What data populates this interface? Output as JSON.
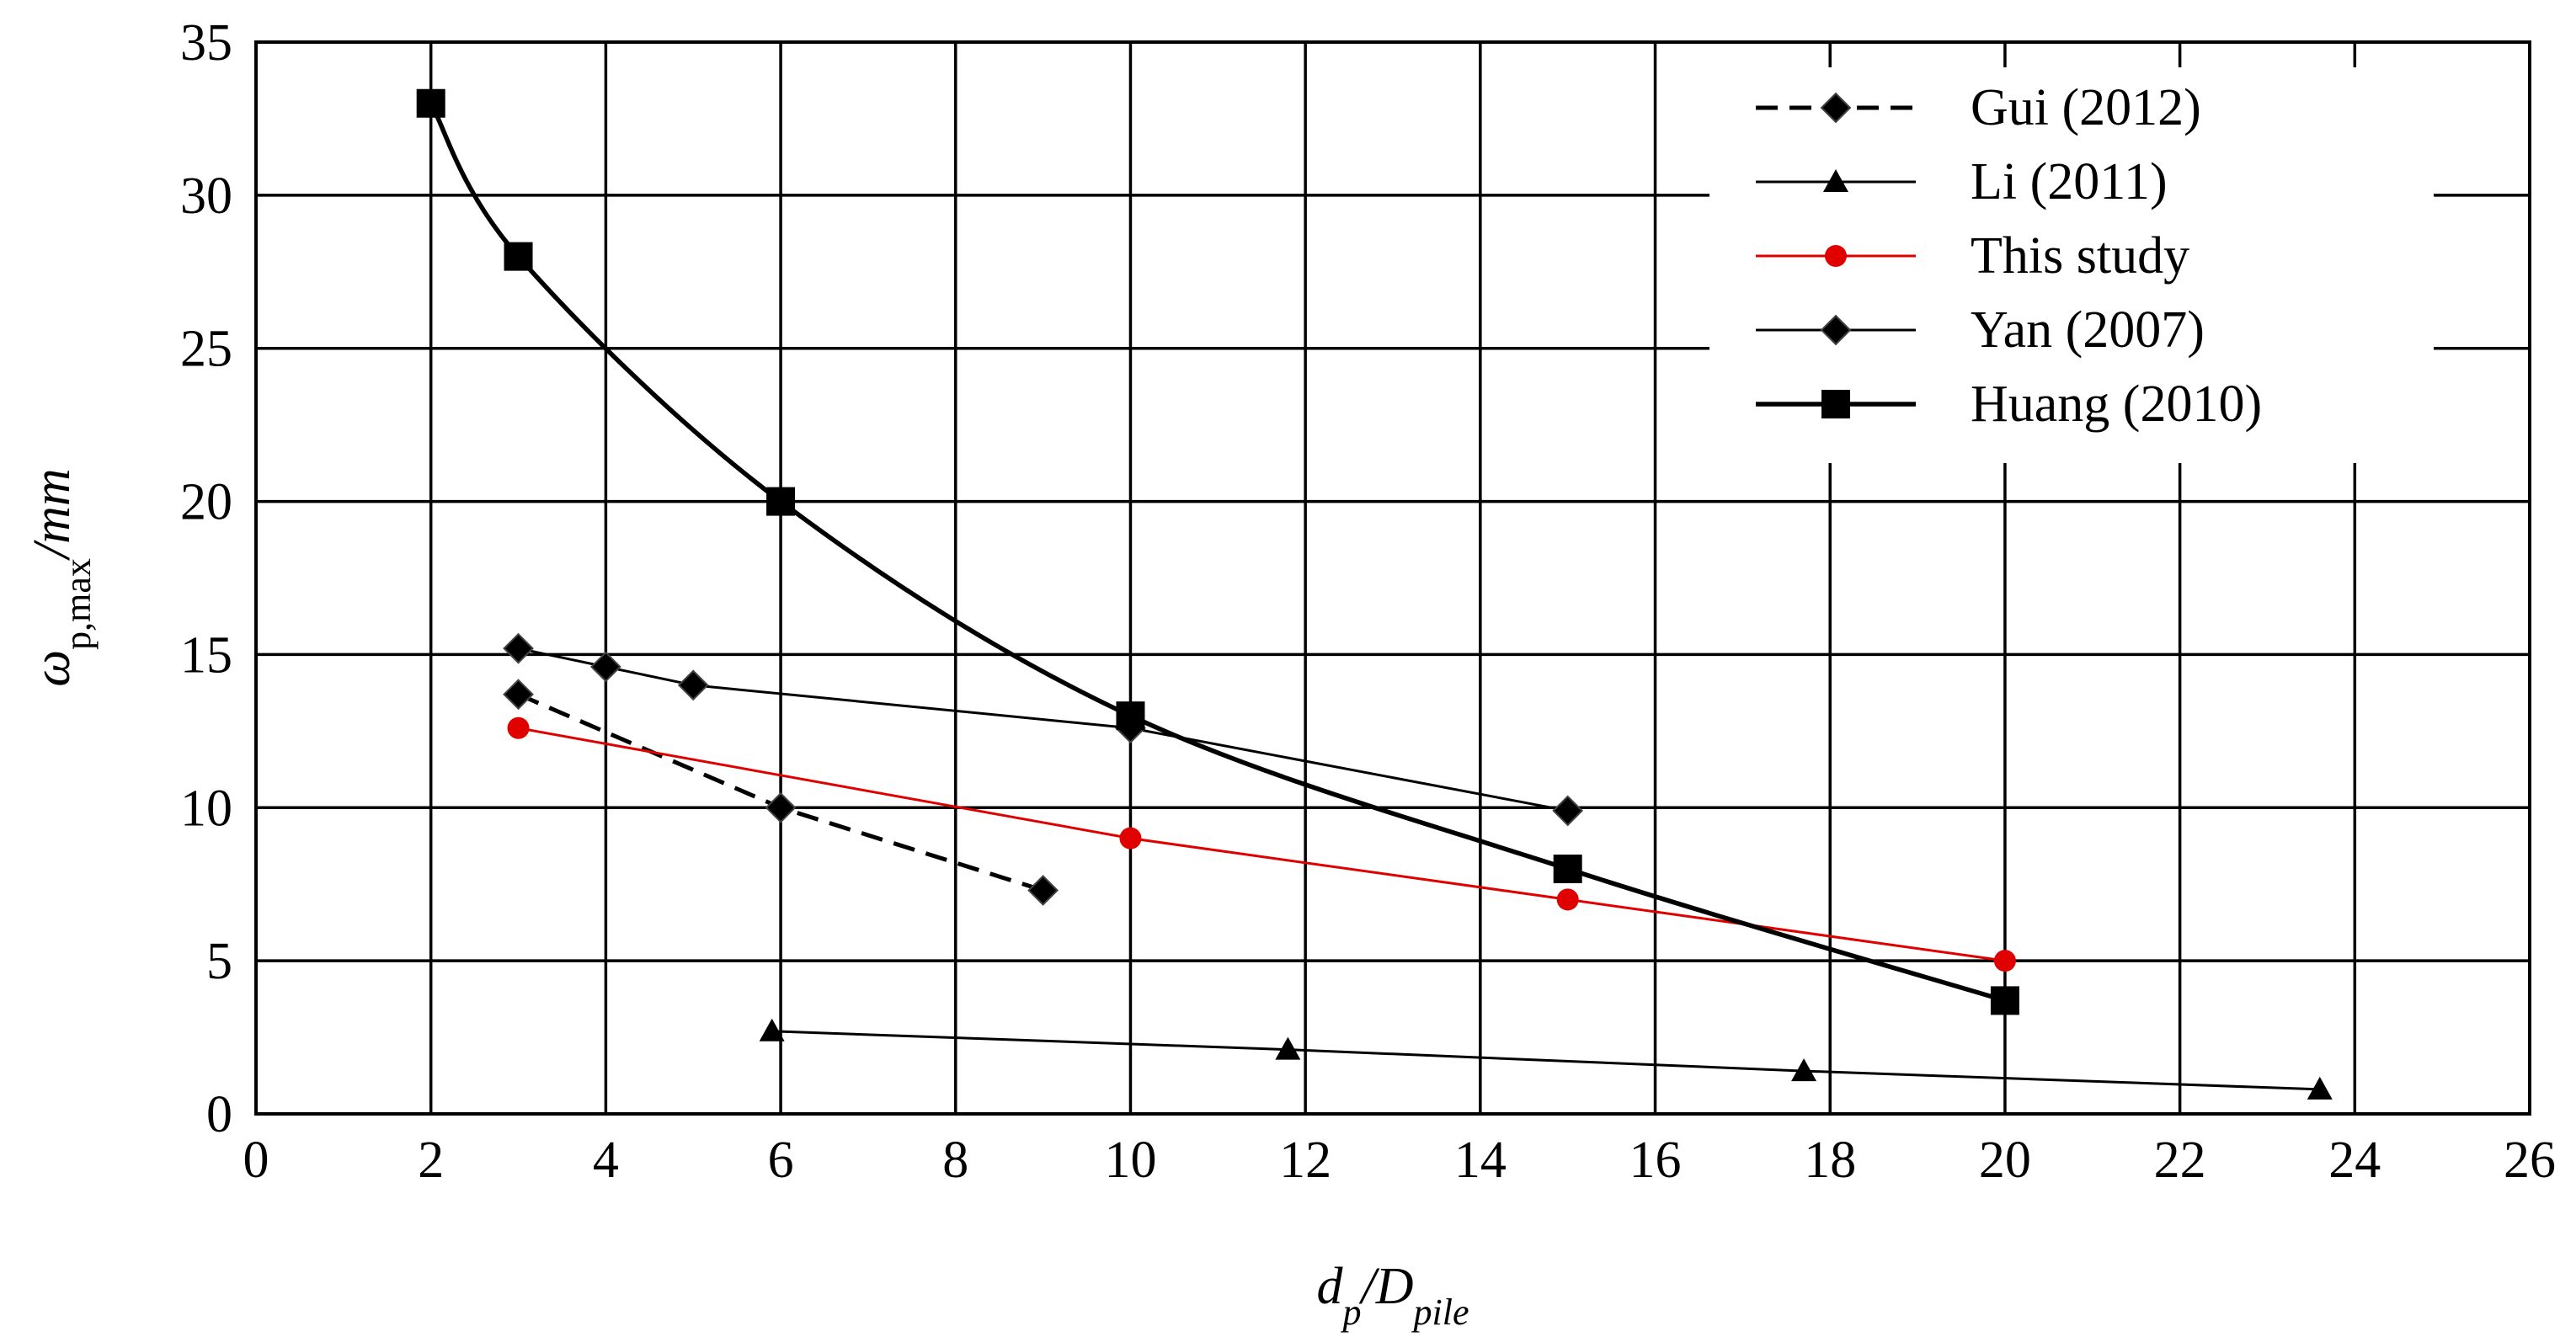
{
  "chart_data": {
    "type": "line",
    "xlabel": {
      "main": "d",
      "sub1": "p",
      "sep": "/D",
      "sub2": "pile"
    },
    "ylabel": {
      "main": "ω",
      "sub1": "p,max",
      "sep": "/mm"
    },
    "xlim": [
      0,
      26
    ],
    "ylim": [
      0,
      35
    ],
    "xticks": [
      0,
      2,
      4,
      6,
      8,
      10,
      12,
      14,
      16,
      18,
      20,
      22,
      24,
      26
    ],
    "yticks": [
      0,
      5,
      10,
      15,
      20,
      25,
      30,
      35
    ],
    "grid": true,
    "legend_position": "top-right",
    "series": [
      {
        "name": "Gui (2012)",
        "color": "#000000",
        "marker": "diamond",
        "line": "dashed",
        "smooth": false,
        "x": [
          3,
          6,
          9
        ],
        "y": [
          13.7,
          10.0,
          7.3
        ]
      },
      {
        "name": "Li (2011)",
        "color": "#000000",
        "marker": "triangle",
        "line": "thin",
        "smooth": false,
        "x": [
          5.9,
          11.8,
          17.7,
          23.6
        ],
        "y": [
          2.7,
          2.1,
          1.4,
          0.8
        ]
      },
      {
        "name": "This study",
        "color": "#e00000",
        "marker": "circle",
        "line": "red",
        "smooth": false,
        "x": [
          3,
          10,
          15,
          20
        ],
        "y": [
          12.6,
          9.0,
          7.0,
          5.0
        ]
      },
      {
        "name": "Yan (2007)",
        "color": "#000000",
        "marker": "diamond",
        "line": "thin",
        "smooth": false,
        "x": [
          3,
          4,
          5,
          10,
          15
        ],
        "y": [
          15.2,
          14.6,
          14.0,
          12.6,
          9.9
        ]
      },
      {
        "name": "Huang (2010)",
        "color": "#000000",
        "marker": "square",
        "line": "thick",
        "smooth": true,
        "x": [
          2,
          3,
          6,
          10,
          15,
          20
        ],
        "y": [
          33,
          28,
          20,
          13,
          8,
          3.7
        ]
      }
    ]
  }
}
